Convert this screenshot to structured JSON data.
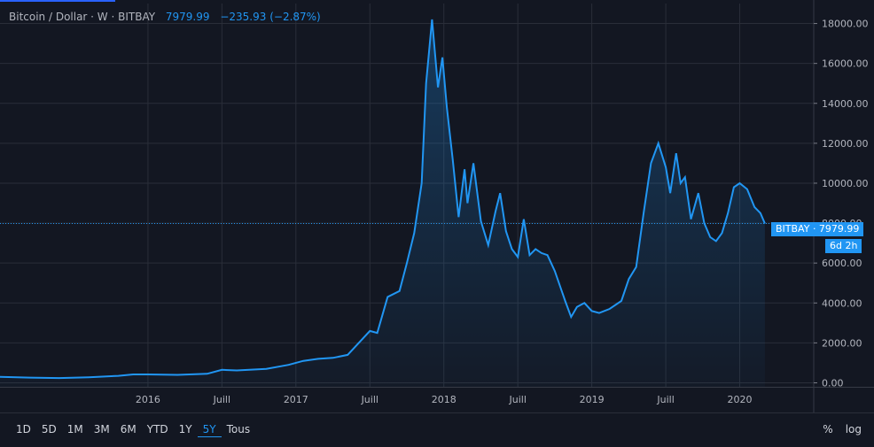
{
  "legend": {
    "symbol": "Bitcoin / Dollar · W · BITBAY",
    "last_price": "7979.99",
    "change": "−235.93 (−2.87%)"
  },
  "badges": {
    "price_label": "BITBAY · 7979.99",
    "countdown": "6d 2h"
  },
  "toolbar": {
    "ranges": [
      "1D",
      "5D",
      "1M",
      "3M",
      "6M",
      "YTD",
      "1Y",
      "5Y",
      "Tous"
    ],
    "active_range": "5Y",
    "percent": "%",
    "log": "log"
  },
  "colors": {
    "line": "#2196f3",
    "background": "#131722",
    "grid": "#2a2e39"
  },
  "chart_data": {
    "type": "area",
    "title": "Bitcoin / Dollar · W · BITBAY",
    "xlabel": "",
    "ylabel": "",
    "xlim": [
      2015.0,
      2020.5
    ],
    "ylim": [
      -200,
      19000
    ],
    "x_ticks": [
      {
        "value": 2016.0,
        "label": "2016"
      },
      {
        "value": 2016.5,
        "label": "Juill"
      },
      {
        "value": 2017.0,
        "label": "2017"
      },
      {
        "value": 2017.5,
        "label": "Juill"
      },
      {
        "value": 2018.0,
        "label": "2018"
      },
      {
        "value": 2018.5,
        "label": "Juill"
      },
      {
        "value": 2019.0,
        "label": "2019"
      },
      {
        "value": 2019.5,
        "label": "Juill"
      },
      {
        "value": 2020.0,
        "label": "2020"
      }
    ],
    "y_ticks": [
      {
        "value": 0,
        "label": "0.00"
      },
      {
        "value": 2000,
        "label": "2000.00"
      },
      {
        "value": 4000,
        "label": "4000.00"
      },
      {
        "value": 6000,
        "label": "6000.00"
      },
      {
        "value": 8000,
        "label": "8000.00"
      },
      {
        "value": 10000,
        "label": "10000.00"
      },
      {
        "value": 12000,
        "label": "12000.00"
      },
      {
        "value": 14000,
        "label": "14000.00"
      },
      {
        "value": 16000,
        "label": "16000.00"
      },
      {
        "value": 18000,
        "label": "18000.00"
      }
    ],
    "last_value": 7979.99,
    "series": [
      {
        "name": "BTC/USD",
        "x": [
          2015.0,
          2015.2,
          2015.4,
          2015.6,
          2015.8,
          2015.9,
          2016.0,
          2016.2,
          2016.4,
          2016.5,
          2016.6,
          2016.8,
          2016.95,
          2017.05,
          2017.15,
          2017.25,
          2017.35,
          2017.45,
          2017.5,
          2017.55,
          2017.62,
          2017.7,
          2017.75,
          2017.8,
          2017.85,
          2017.88,
          2017.92,
          2017.96,
          2017.99,
          2018.02,
          2018.06,
          2018.1,
          2018.14,
          2018.16,
          2018.2,
          2018.25,
          2018.3,
          2018.35,
          2018.38,
          2018.42,
          2018.46,
          2018.5,
          2018.54,
          2018.58,
          2018.62,
          2018.66,
          2018.7,
          2018.75,
          2018.82,
          2018.86,
          2018.9,
          2018.95,
          2019.0,
          2019.05,
          2019.12,
          2019.2,
          2019.25,
          2019.3,
          2019.35,
          2019.4,
          2019.45,
          2019.5,
          2019.53,
          2019.57,
          2019.6,
          2019.63,
          2019.67,
          2019.72,
          2019.76,
          2019.8,
          2019.84,
          2019.88,
          2019.92,
          2019.96,
          2020.0,
          2020.05,
          2020.1,
          2020.14,
          2020.17
        ],
        "values": [
          300,
          260,
          240,
          280,
          350,
          420,
          420,
          400,
          450,
          650,
          620,
          700,
          900,
          1100,
          1200,
          1250,
          1400,
          2200,
          2600,
          2500,
          4300,
          4600,
          6000,
          7500,
          10000,
          15000,
          18200,
          14800,
          16300,
          13800,
          11200,
          8300,
          10700,
          9000,
          11000,
          8100,
          6900,
          8600,
          9500,
          7600,
          6700,
          6300,
          8200,
          6400,
          6700,
          6500,
          6400,
          5600,
          4100,
          3300,
          3800,
          4000,
          3600,
          3500,
          3700,
          4100,
          5200,
          5800,
          8500,
          11000,
          12000,
          10800,
          9500,
          11500,
          10000,
          10300,
          8200,
          9500,
          8000,
          7300,
          7100,
          7500,
          8500,
          9800,
          10000,
          9700,
          8800,
          8500,
          7979.99
        ]
      }
    ]
  }
}
